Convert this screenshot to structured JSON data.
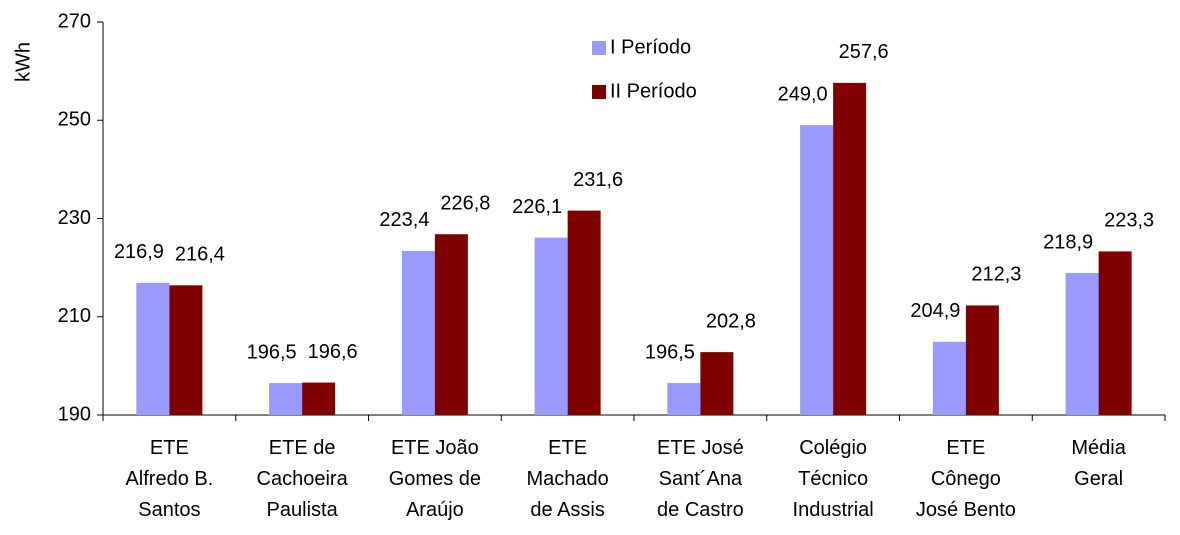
{
  "chart_data": {
    "type": "bar",
    "y_label": "kWh",
    "categories": [
      "ETE\nAlfredo B.\nSantos",
      "ETE de\nCachoeira\nPaulista",
      "ETE João\nGomes de\nAraújo",
      "ETE\nMachado\nde Assis",
      "ETE José\nSant´Ana\nde Castro",
      "Colégio\nTécnico\nIndustrial",
      "ETE\nCônego\nJosé Bento",
      "Média\nGeral"
    ],
    "series": [
      {
        "name": "I Período",
        "color": "#9999ff",
        "values": [
          216.9,
          196.5,
          223.4,
          226.1,
          196.5,
          249.0,
          204.9,
          218.9
        ],
        "value_labels": [
          "216,9",
          "196,5",
          "223,4",
          "226,1",
          "196,5",
          "249,0",
          "204,9",
          "218,9"
        ]
      },
      {
        "name": "II Período",
        "color": "#800000",
        "values": [
          216.4,
          196.6,
          226.8,
          231.6,
          202.8,
          257.6,
          212.3,
          223.3
        ],
        "value_labels": [
          "216,4",
          "196,6",
          "226,8",
          "231,6",
          "202,8",
          "257,6",
          "212,3",
          "223,3"
        ]
      }
    ],
    "ylim": [
      190,
      270
    ],
    "yticks": [
      190,
      210,
      230,
      250,
      270
    ],
    "grid": false,
    "legend": "top"
  }
}
